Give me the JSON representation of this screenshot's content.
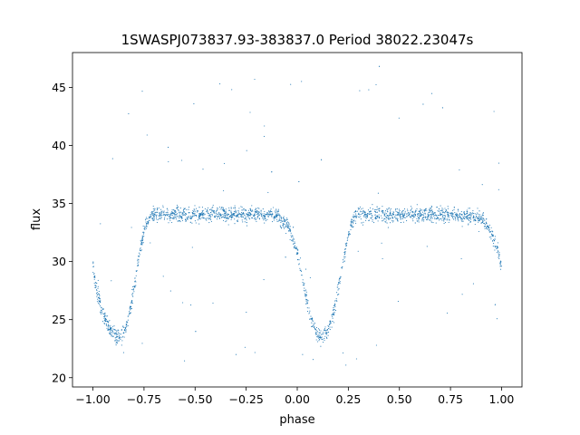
{
  "chart_data": {
    "type": "scatter",
    "title": "1SWASPJ073837.93-383837.0 Period 38022.23047s",
    "xlabel": "phase",
    "ylabel": "flux",
    "xlim": [
      -1.1,
      1.1
    ],
    "ylim": [
      19.2,
      48.0
    ],
    "xticks": [
      -1.0,
      -0.75,
      -0.5,
      -0.25,
      0.0,
      0.25,
      0.5,
      0.75,
      1.0
    ],
    "xtick_labels": [
      "−1.00",
      "−0.75",
      "−0.50",
      "−0.25",
      "0.00",
      "0.25",
      "0.50",
      "0.75",
      "1.00"
    ],
    "yticks": [
      20,
      25,
      30,
      35,
      40,
      45
    ],
    "ytick_labels": [
      "20",
      "25",
      "30",
      "35",
      "40",
      "45"
    ],
    "grid": false,
    "legend": "none",
    "marker_color": "#1f77b4",
    "series": [
      {
        "x": [
          -1.0,
          -0.98,
          -0.96,
          -0.94,
          -0.92,
          -0.9,
          -0.88,
          -0.86,
          -0.84,
          -0.82,
          -0.8,
          -0.78,
          -0.76,
          -0.74,
          -0.72,
          -0.7,
          -0.65,
          -0.6,
          -0.5,
          -0.4,
          -0.3,
          -0.2,
          -0.1,
          -0.05,
          -0.02,
          0.0,
          0.02,
          0.04,
          0.06,
          0.08,
          0.1,
          0.12,
          0.14,
          0.16,
          0.18,
          0.2,
          0.22,
          0.24,
          0.26,
          0.28,
          0.3,
          0.35,
          0.4,
          0.5,
          0.6,
          0.7,
          0.8,
          0.9,
          0.95,
          0.98,
          1.0
        ],
        "y": [
          29.5,
          27.5,
          26.0,
          25.0,
          24.3,
          23.8,
          23.5,
          23.6,
          24.2,
          25.5,
          27.5,
          29.8,
          31.8,
          33.2,
          33.9,
          34.1,
          34.0,
          34.1,
          34.0,
          34.1,
          34.0,
          34.1,
          34.0,
          33.2,
          32.0,
          30.8,
          29.0,
          27.2,
          25.6,
          24.4,
          23.7,
          23.5,
          23.7,
          24.5,
          25.8,
          27.6,
          29.6,
          31.5,
          33.0,
          33.8,
          34.1,
          34.0,
          34.1,
          34.0,
          34.1,
          34.0,
          34.0,
          33.8,
          32.5,
          31.0,
          29.5
        ]
      }
    ]
  }
}
